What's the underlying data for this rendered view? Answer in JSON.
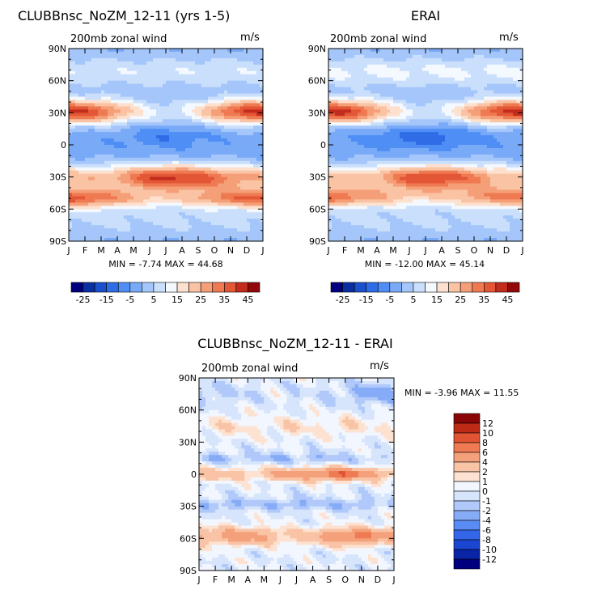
{
  "colors": {
    "abs_palette": [
      "#00007f",
      "#0a2fa0",
      "#1b4fcc",
      "#2e6de6",
      "#4f8ef5",
      "#79aaf7",
      "#a4c6fa",
      "#cadffc",
      "#f4f8ff",
      "#fde0ce",
      "#f9c3a4",
      "#f59f78",
      "#ef7a52",
      "#e35636",
      "#c32c1c",
      "#930808"
    ],
    "diff_palette": [
      "#00007f",
      "#0a24a8",
      "#1b46d2",
      "#3466ea",
      "#5a8af3",
      "#86abf7",
      "#b0c9fa",
      "#d6e4fc",
      "#f2f6ff",
      "#fde2d1",
      "#f9c4a6",
      "#f4a07a",
      "#ee7b53",
      "#e05433",
      "#bd2a16",
      "#8a0505"
    ]
  },
  "chart_data": [
    {
      "type": "heatmap",
      "title": "CLUBBnsc_NoZM_12-11 (yrs 1-5)",
      "subtitle_left": "200mb  zonal  wind",
      "subtitle_right": "m/s",
      "x_ticks": [
        "J",
        "F",
        "M",
        "A",
        "M",
        "J",
        "J",
        "A",
        "S",
        "O",
        "N",
        "D",
        "J"
      ],
      "y_ticks": [
        "90N",
        "60N",
        "30N",
        "0",
        "30S",
        "60S",
        "90S"
      ],
      "stats": "MIN =   -7.74  MAX =   44.68",
      "jets": [
        {
          "lat": 31,
          "amplitude": [
            42,
            40,
            35,
            27,
            19,
            11,
            8,
            10,
            17,
            27,
            36,
            41,
            42
          ],
          "width": 11
        },
        {
          "lat": -31,
          "amplitude": [
            24,
            23,
            24,
            26,
            32,
            39,
            42,
            41,
            38,
            34,
            29,
            26,
            24
          ],
          "width": 12
        },
        {
          "lat": -50,
          "amplitude": [
            35,
            33,
            30,
            26,
            21,
            17,
            16,
            17,
            21,
            26,
            30,
            33,
            35
          ],
          "width": 9
        }
      ],
      "equatorial_easterly": [
        0,
        0,
        1,
        2,
        4,
        6,
        7,
        6,
        4,
        2,
        1,
        0,
        0
      ],
      "polar_westerly": 10
    },
    {
      "type": "heatmap",
      "title": "ERAI",
      "subtitle_left": "200mb  zonal  wind",
      "subtitle_right": "m/s",
      "x_ticks": [
        "J",
        "F",
        "M",
        "A",
        "M",
        "J",
        "J",
        "A",
        "S",
        "O",
        "N",
        "D",
        "J"
      ],
      "y_ticks": [
        "90N",
        "60N",
        "30N",
        "0",
        "30S",
        "60S",
        "90S"
      ],
      "stats": "MIN =  -12.00  MAX =   45.14",
      "jets": [
        {
          "lat": 31,
          "amplitude": [
            42,
            41,
            36,
            27,
            18,
            10,
            8,
            10,
            17,
            28,
            37,
            42,
            42
          ],
          "width": 11
        },
        {
          "lat": -31,
          "amplitude": [
            22,
            21,
            22,
            24,
            30,
            37,
            40,
            39,
            36,
            31,
            26,
            23,
            22
          ],
          "width": 12
        },
        {
          "lat": -49,
          "amplitude": [
            32,
            30,
            27,
            23,
            19,
            16,
            15,
            16,
            19,
            23,
            27,
            30,
            32
          ],
          "width": 9
        }
      ],
      "equatorial_easterly": [
        2,
        2,
        3,
        5,
        7,
        10,
        11,
        10,
        7,
        4,
        3,
        2,
        2
      ],
      "polar_westerly": 12
    },
    {
      "type": "heatmap",
      "title": "CLUBBnsc_NoZM_12-11 - ERAI",
      "subtitle_left": "200mb  zonal  wind",
      "subtitle_right": "m/s",
      "x_ticks": [
        "J",
        "F",
        "M",
        "A",
        "M",
        "J",
        "J",
        "A",
        "S",
        "O",
        "N",
        "D",
        "J"
      ],
      "y_ticks": [
        "90N",
        "60N",
        "30N",
        "0",
        "30S",
        "60S",
        "90S"
      ],
      "stats": "MIN =   -3.96  MAX =   11.55",
      "bands": [
        {
          "lat": 0,
          "amplitude": [
            3,
            3,
            3,
            2,
            3,
            4,
            5,
            6,
            7,
            8,
            6,
            4,
            3
          ],
          "width": 6
        },
        {
          "lat": -58,
          "amplitude": [
            4,
            4,
            5,
            5,
            4,
            3,
            2,
            3,
            5,
            6,
            7,
            5,
            4
          ],
          "width": 8
        },
        {
          "lat": 15,
          "amplitude": [
            -1,
            -2,
            -2,
            -1,
            -2,
            -2,
            -1,
            -2,
            -2,
            -1,
            -1,
            -1,
            -1
          ],
          "width": 5
        },
        {
          "lat": -28,
          "amplitude": [
            -1,
            -2,
            -2,
            -2,
            -1,
            -2,
            -2,
            -2,
            -1,
            -2,
            -2,
            -1,
            -1
          ],
          "width": 6
        },
        {
          "lat": 45,
          "amplitude": [
            1,
            1,
            2,
            1,
            1,
            1,
            2,
            1,
            1,
            2,
            1,
            1,
            1
          ],
          "width": 10
        },
        {
          "lat": 75,
          "amplitude": [
            -2,
            -1,
            -1,
            -1,
            0,
            0,
            -1,
            0,
            -1,
            -1,
            -2,
            -3,
            -2
          ],
          "width": 10
        }
      ]
    }
  ],
  "colorbars": {
    "top_labels": [
      "-25",
      "-15",
      "-5",
      "5",
      "15",
      "25",
      "35",
      "45"
    ],
    "diff_labels": [
      "12",
      "10",
      "8",
      "6",
      "4",
      "2",
      "1",
      "0",
      "-1",
      "-2",
      "-4",
      "-6",
      "-8",
      "-10",
      "-12"
    ]
  }
}
